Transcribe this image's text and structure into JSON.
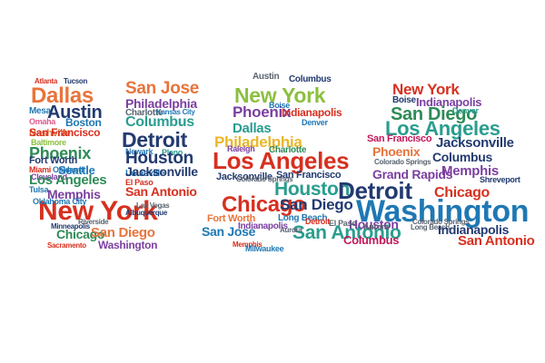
{
  "palette": {
    "red": "#d7301f",
    "orange": "#e8743b",
    "yellow": "#e9b72a",
    "lime": "#8cbf3f",
    "green": "#2e8b57",
    "teal": "#2a9d8f",
    "blue": "#1f78b4",
    "navy": "#223a70",
    "purple": "#7b3fa0",
    "magenta": "#c2185b",
    "pink": "#e05a8c",
    "brown": "#8b5a2b",
    "gray": "#5a6470"
  },
  "words": [
    "Atlanta",
    "Tucson",
    "Dallas",
    "Mesa",
    "Austin",
    "Omaha",
    "Nashville",
    "Boston",
    "San Francisco",
    "Baltimore",
    "Phoenix",
    "Fort Worth",
    "Miami",
    "Oakland",
    "Cleveland",
    "Seattle",
    "Los Angeles",
    "Tulsa",
    "Memphis",
    "New York",
    "Oklahoma City",
    "Chicago",
    "San Diego",
    "Minneapolis",
    "Riverside",
    "Sacramento",
    "Washington",
    "San Jose",
    "Philadelphia",
    "Charlotte",
    "Kansas City",
    "Columbus",
    "Detroit",
    "Newark",
    "Plano",
    "Houston",
    "Louisville",
    "Jacksonville",
    "El Paso",
    "San Antonio",
    "Las Vegas",
    "Albuquerque",
    "Austin",
    "Columbus",
    "New York",
    "Boise",
    "Phoenix",
    "Indianapolis",
    "Dallas",
    "Denver",
    "Philadelphia",
    "Raleigh",
    "Charlotte",
    "Los Angeles",
    "Jacksonville",
    "San Francisco",
    "Colorado Springs",
    "Houston",
    "Chicago",
    "San Diego",
    "Fort Worth",
    "Long Beach",
    "San Jose",
    "Detroit",
    "Indianapolis",
    "San Antonio",
    "Memphis",
    "Milwaukee",
    "Aurora",
    "New York",
    "Boise",
    "Indianapolis",
    "San Diego",
    "Denver",
    "Los Angeles",
    "San Francisco",
    "Jacksonville",
    "Phoenix",
    "Columbus",
    "Colorado Springs",
    "Memphis",
    "Grand Rapids",
    "Detroit",
    "Chicago",
    "Shreveport",
    "Washington",
    "Houston",
    "Colorado Springs",
    "Aurora",
    "Long Beach",
    "Indianapolis",
    "Columbus",
    "San Antonio",
    "El Paso"
  ]
}
